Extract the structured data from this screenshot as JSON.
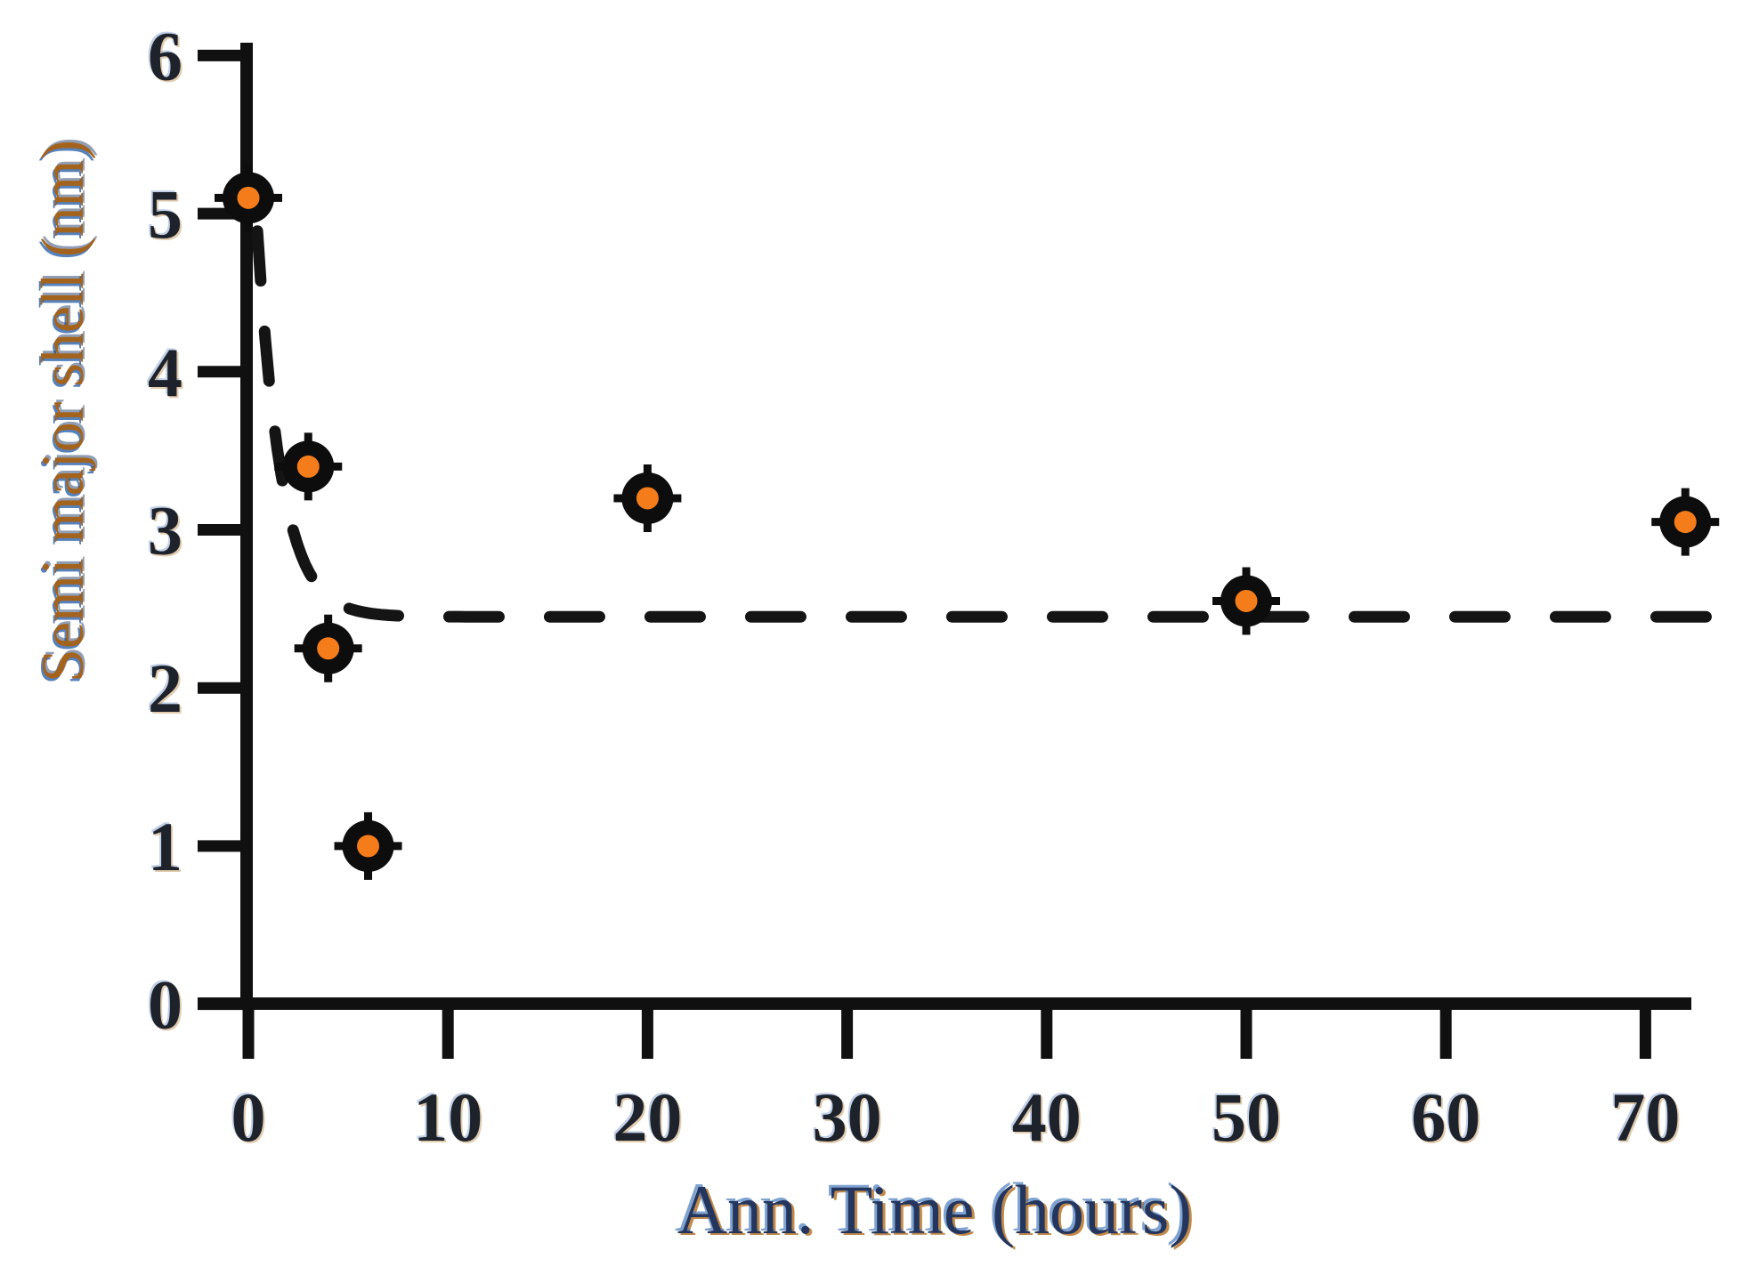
{
  "figure": {
    "background": "#ffffff"
  },
  "chart_data": {
    "type": "scatter",
    "title": "",
    "xlabel": "Ann. Time (hours)",
    "ylabel": "Semi major shell (nm)",
    "x_ticks": [
      0,
      10,
      20,
      30,
      40,
      50,
      60,
      70
    ],
    "y_ticks": [
      0,
      1,
      2,
      3,
      4,
      5,
      6
    ],
    "xlim": [
      0,
      73.5
    ],
    "ylim": [
      0,
      6
    ],
    "grid": false,
    "legend": "none",
    "points": [
      {
        "x": 0,
        "y": 5.1
      },
      {
        "x": 3,
        "y": 3.4
      },
      {
        "x": 4,
        "y": 2.25
      },
      {
        "x": 6,
        "y": 1.0
      },
      {
        "x": 20,
        "y": 3.2
      },
      {
        "x": 50,
        "y": 2.55
      },
      {
        "x": 72,
        "y": 3.05
      }
    ],
    "trend": {
      "style": "dashed",
      "shape": "exponential-decay",
      "asymptote": 2.45,
      "amplitude": 3.55,
      "tau_hours": 1.2,
      "x_start": 0.45,
      "x_end": 73.2
    },
    "colors": {
      "marker_center": "#f57c1b",
      "marker_outline": "#0d0d0d",
      "axis": "#101010",
      "tick_label": "#1d222b",
      "xlabel_main": "#24365e",
      "ylabel_main": "#a4631c",
      "fringe_blue": "#4a7dbd",
      "fringe_orange": "#b36d1d"
    }
  }
}
